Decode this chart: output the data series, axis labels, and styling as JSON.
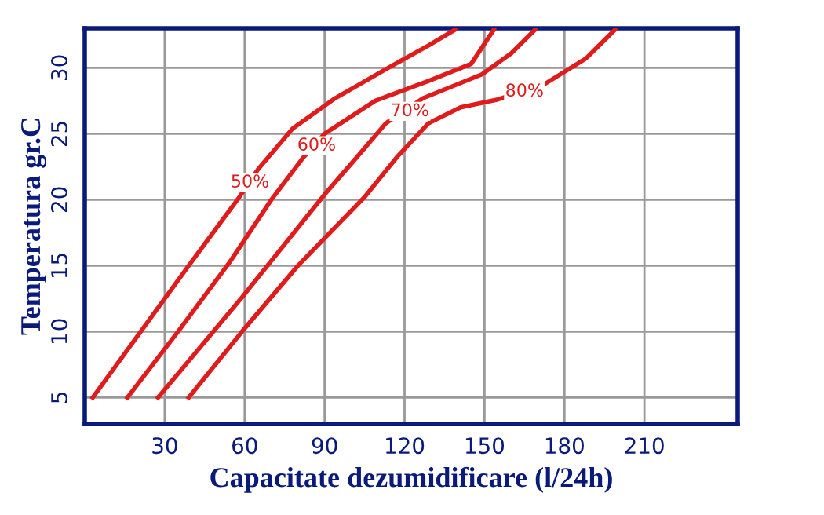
{
  "chart_data": {
    "type": "line",
    "xlabel": "Capacitate dezumidificare (l/24h)",
    "ylabel": "Temperatura gr.C",
    "xlim": [
      0,
      245
    ],
    "ylim": [
      3,
      33
    ],
    "xticks": [
      30,
      60,
      90,
      120,
      150,
      180,
      210
    ],
    "yticks": [
      5,
      10,
      15,
      20,
      25,
      30
    ],
    "grid": true,
    "line_style": "solid",
    "marker": "none",
    "series": [
      {
        "color": "#e01b1b",
        "x": [
          3,
          21,
          39,
          58,
          65,
          78,
          94,
          113,
          129,
          139
        ],
        "values": [
          5,
          10,
          15,
          20.2,
          22.3,
          25.4,
          27.7,
          29.9,
          31.7,
          32.9
        ]
      },
      {
        "color": "#e01b1b",
        "x": [
          16,
          35,
          54.5,
          70,
          82,
          90,
          109,
          129,
          145,
          153.5
        ],
        "values": [
          5,
          10,
          15.3,
          20,
          23.2,
          25,
          27.5,
          29,
          30.3,
          32.9
        ]
      },
      {
        "color": "#e01b1b",
        "x": [
          27.5,
          59,
          90,
          102,
          113,
          127,
          149,
          160,
          169
        ],
        "values": [
          5,
          12.6,
          20.4,
          23.2,
          25.8,
          27.7,
          29.5,
          31.1,
          32.9
        ]
      },
      {
        "color": "#e01b1b",
        "x": [
          39,
          59,
          80,
          105,
          117,
          129,
          141,
          155,
          172,
          188,
          199
        ],
        "values": [
          5,
          10,
          15,
          20.2,
          23.2,
          25.8,
          27,
          27.6,
          28.7,
          30.7,
          32.9
        ]
      }
    ],
    "annotations": [
      {
        "text": "50%",
        "x": 62,
        "y": 21.3
      },
      {
        "text": "60%",
        "x": 87,
        "y": 24.1
      },
      {
        "text": "70%",
        "x": 122,
        "y": 26.7
      },
      {
        "text": "80%",
        "x": 165,
        "y": 28.2
      }
    ]
  }
}
